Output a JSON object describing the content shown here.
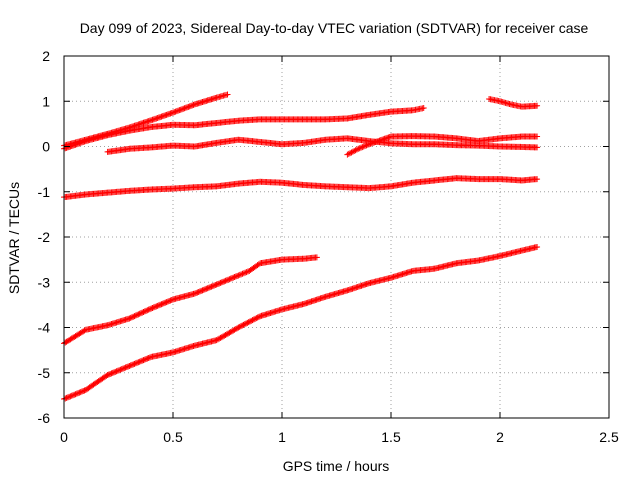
{
  "chart_data": {
    "type": "scatter",
    "title": "Day 099 of 2023, Sidereal Day-to-day VTEC variation (SDTVAR) for receiver case",
    "xlabel": "GPS time / hours",
    "ylabel": "SDTVAR / TECUs",
    "xlim": [
      0,
      2.5
    ],
    "ylim": [
      -6,
      2
    ],
    "x_ticks": [
      0,
      0.5,
      1,
      1.5,
      2,
      2.5
    ],
    "x_tick_labels": [
      "0",
      "0.5",
      "1",
      "1.5",
      "2",
      "2.5"
    ],
    "y_ticks": [
      -6,
      -5,
      -4,
      -3,
      -2,
      -1,
      0,
      1,
      2
    ],
    "y_tick_labels": [
      "-6",
      "-5",
      "-4",
      "-3",
      "-2",
      "-1",
      "0",
      "1",
      "2"
    ],
    "grid": true,
    "marker": "+",
    "marker_color": "#ff0000",
    "series": [
      {
        "x": [
          0.0,
          0.1,
          0.2,
          0.3,
          0.4,
          0.5,
          0.6,
          0.7,
          0.75
        ],
        "y": [
          0.02,
          0.15,
          0.28,
          0.42,
          0.58,
          0.75,
          0.93,
          1.08,
          1.15
        ]
      },
      {
        "x": [
          0.0,
          0.1,
          0.2,
          0.3,
          0.4,
          0.5,
          0.6,
          0.7,
          0.8,
          0.9,
          1.0,
          1.1,
          1.2,
          1.3,
          1.4,
          1.5,
          1.6,
          1.65
        ],
        "y": [
          -0.05,
          0.12,
          0.25,
          0.35,
          0.43,
          0.48,
          0.47,
          0.52,
          0.57,
          0.6,
          0.6,
          0.6,
          0.6,
          0.62,
          0.7,
          0.77,
          0.8,
          0.85
        ]
      },
      {
        "x": [
          0.2,
          0.3,
          0.4,
          0.5,
          0.6,
          0.7,
          0.8,
          0.9,
          1.0,
          1.1,
          1.2,
          1.3,
          1.4,
          1.5,
          1.6,
          1.7,
          1.8,
          1.9,
          2.0,
          2.1,
          2.17
        ],
        "y": [
          -0.12,
          -0.05,
          -0.02,
          0.02,
          0.0,
          0.08,
          0.15,
          0.1,
          0.05,
          0.08,
          0.15,
          0.18,
          0.12,
          0.07,
          0.05,
          0.05,
          0.03,
          0.02,
          0.0,
          -0.01,
          -0.02
        ]
      },
      {
        "x": [
          1.3,
          1.35,
          1.4,
          1.5,
          1.6,
          1.7,
          1.8,
          1.9,
          2.0,
          2.1,
          2.17
        ],
        "y": [
          -0.18,
          -0.05,
          0.05,
          0.22,
          0.23,
          0.22,
          0.18,
          0.12,
          0.18,
          0.22,
          0.22
        ]
      },
      {
        "x": [
          1.95,
          2.0,
          2.05,
          2.1,
          2.17
        ],
        "y": [
          1.05,
          1.0,
          0.93,
          0.88,
          0.9
        ]
      },
      {
        "x": [
          0.0,
          0.1,
          0.2,
          0.3,
          0.4,
          0.5,
          0.6,
          0.7,
          0.8,
          0.9,
          1.0,
          1.1,
          1.2,
          1.3,
          1.4,
          1.5,
          1.6,
          1.7,
          1.8,
          1.9,
          2.0,
          2.1,
          2.17
        ],
        "y": [
          -1.12,
          -1.06,
          -1.02,
          -0.98,
          -0.95,
          -0.93,
          -0.9,
          -0.88,
          -0.82,
          -0.78,
          -0.8,
          -0.85,
          -0.88,
          -0.9,
          -0.92,
          -0.88,
          -0.8,
          -0.75,
          -0.7,
          -0.72,
          -0.72,
          -0.75,
          -0.72
        ]
      },
      {
        "x": [
          0.0,
          0.1,
          0.2,
          0.3,
          0.4,
          0.5,
          0.6,
          0.7,
          0.8,
          0.85,
          0.9,
          1.0,
          1.1,
          1.16
        ],
        "y": [
          -4.35,
          -4.05,
          -3.95,
          -3.8,
          -3.58,
          -3.38,
          -3.25,
          -3.05,
          -2.85,
          -2.75,
          -2.58,
          -2.5,
          -2.48,
          -2.45
        ]
      },
      {
        "x": [
          0.0,
          0.1,
          0.2,
          0.3,
          0.4,
          0.5,
          0.6,
          0.7,
          0.8,
          0.9,
          1.0,
          1.1,
          1.2,
          1.3,
          1.4,
          1.5,
          1.6,
          1.7,
          1.8,
          1.9,
          2.0,
          2.1,
          2.17
        ],
        "y": [
          -5.58,
          -5.38,
          -5.05,
          -4.85,
          -4.65,
          -4.55,
          -4.4,
          -4.28,
          -4.0,
          -3.75,
          -3.6,
          -3.48,
          -3.32,
          -3.18,
          -3.02,
          -2.9,
          -2.75,
          -2.7,
          -2.58,
          -2.52,
          -2.42,
          -2.3,
          -2.22
        ]
      }
    ]
  }
}
